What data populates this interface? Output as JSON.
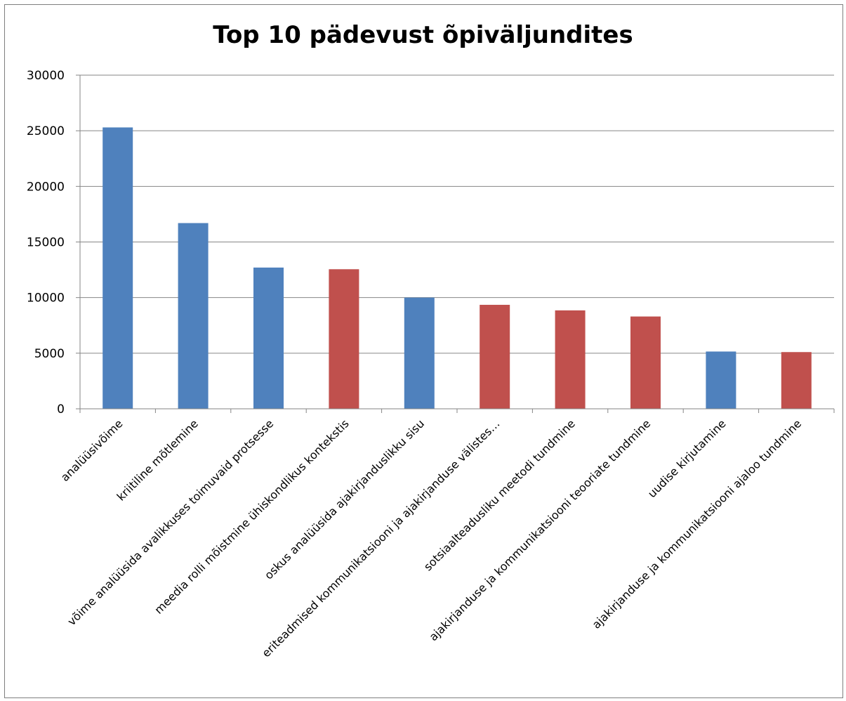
{
  "chart_data": {
    "type": "bar",
    "title": "Top 10 pädevust õpiväljundites",
    "xlabel": "",
    "ylabel": "",
    "ylim": [
      0,
      30000
    ],
    "yticks": [
      0,
      5000,
      10000,
      15000,
      20000,
      25000,
      30000
    ],
    "grid": true,
    "legend": "none",
    "categories": [
      "analüüsivõime",
      "kriitiline mõtlemine",
      "võime analüüsida avalikkuses toimuvaid protsesse",
      "meedia rolli mõistmine ühiskondlikus kontekstis",
      "oskus analüüsida ajakirjanduslikku sisu",
      "eriteadmised kommunikatsiooni ja ajakirjanduse välistes…",
      "sotsiaalteadusliku meetodi tundmine",
      "ajakirjanduse ja kommunikatsiooni teooriate tundmine",
      "uudise kirjutamine",
      "ajakirjanduse ja kommunikatsiooni ajaloo tundmine"
    ],
    "values": [
      25300,
      16700,
      12700,
      12550,
      10000,
      9350,
      8850,
      8300,
      5150,
      5100
    ],
    "bar_colors": [
      "#4f81bd",
      "#4f81bd",
      "#4f81bd",
      "#c0504d",
      "#4f81bd",
      "#c0504d",
      "#c0504d",
      "#c0504d",
      "#4f81bd",
      "#c0504d"
    ]
  }
}
